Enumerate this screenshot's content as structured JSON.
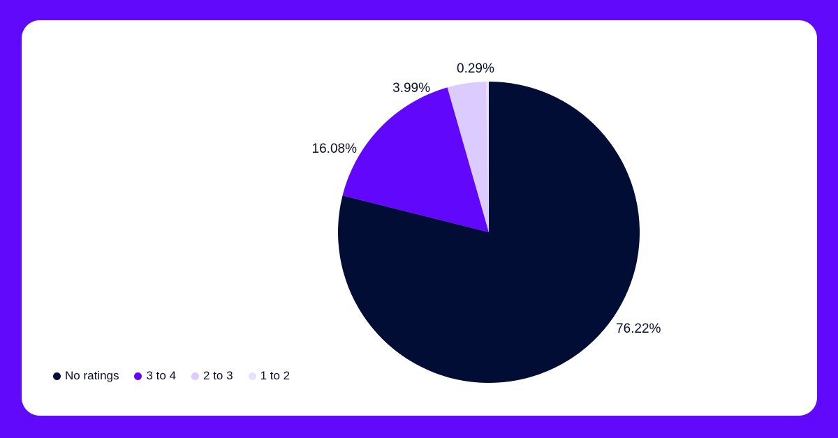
{
  "chart_data": {
    "type": "pie",
    "start": "top",
    "direction": "clockwise",
    "legend_position": "bottom-left",
    "slices": [
      {
        "label": "No ratings",
        "value": 76.22,
        "value_label": "76.22%",
        "color": "#020d35"
      },
      {
        "label": "3 to 4",
        "value": 16.08,
        "value_label": "16.08%",
        "color": "#6107fb"
      },
      {
        "label": "2 to 3",
        "value": 3.99,
        "value_label": "3.99%",
        "color": "#dccbff"
      },
      {
        "label": "1 to 2",
        "value": 0.29,
        "value_label": "0.29%",
        "color": "#e9e0fd"
      }
    ]
  },
  "colors": {
    "background": "#6109fb",
    "card": "#ffffff"
  }
}
